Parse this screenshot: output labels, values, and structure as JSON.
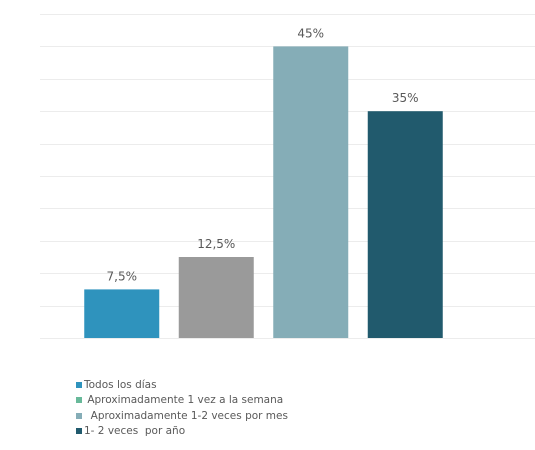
{
  "chart_data": {
    "type": "bar",
    "categories": [
      "Todos los días",
      "Aproximadamente 1 vez a la semana",
      " Aproximadamente 1-2 veces por mes",
      "1- 2 veces  por año"
    ],
    "series": [
      {
        "name": "Todos los días",
        "value": 7.5,
        "label": "7,5%",
        "color": "#2f93bd"
      },
      {
        "name": "Aproximadamente 1 vez a la semana",
        "value": 12.5,
        "label": "12,5%",
        "color": "#9a9a9a"
      },
      {
        "name": " Aproximadamente 1-2 veces por mes",
        "value": 45,
        "label": "45%",
        "color": "#85adb7"
      },
      {
        "name": "1- 2 veces  por año",
        "value": 35,
        "label": "35%",
        "color": "#215a6d"
      }
    ],
    "ylim": [
      0,
      50
    ],
    "grid": true,
    "legend_position": "bottom-left"
  },
  "legend": {
    "items": [
      {
        "label": "Todos los días",
        "color": "#2f93bd"
      },
      {
        "label": " Aproximadamente 1 vez a la semana",
        "color": "#68b99a"
      },
      {
        "label": "  Aproximadamente 1-2 veces por mes",
        "color": "#85adb7"
      },
      {
        "label": "1- 2 veces  por año",
        "color": "#215a6d"
      }
    ]
  }
}
